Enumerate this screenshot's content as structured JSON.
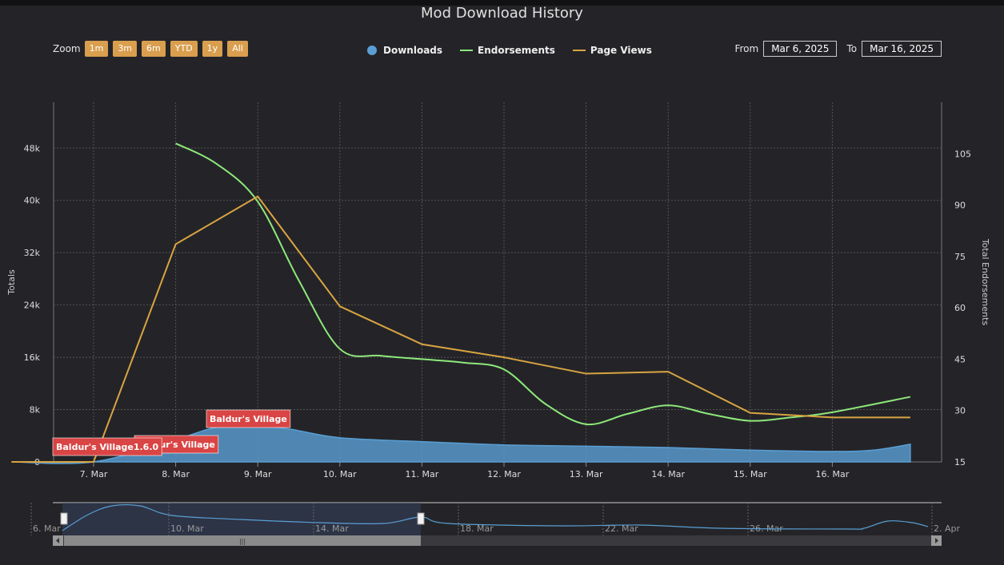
{
  "title": "Mod Download History",
  "zoom": {
    "label": "Zoom",
    "buttons": [
      "1m",
      "3m",
      "6m",
      "YTD",
      "1y",
      "All"
    ]
  },
  "legend": [
    {
      "name": "Downloads",
      "color": "#5a9fd4"
    },
    {
      "name": "Endorsements",
      "color": "#8ee87a"
    },
    {
      "name": "Page Views",
      "color": "#d9a441"
    }
  ],
  "range": {
    "from_label": "From",
    "from": "Mar 6, 2025",
    "to_label": "To",
    "to": "Mar 16, 2025"
  },
  "navigator": {
    "ticks": [
      "6. Mar",
      "10. Mar",
      "14. Mar",
      "18. Mar",
      "22. Mar",
      "26. Mar",
      "2. Apr"
    ]
  },
  "chart_data": {
    "type": "line",
    "title": "Mod Download History",
    "x_dates": [
      "2025-03-06",
      "2025-03-07",
      "2025-03-08",
      "2025-03-09",
      "2025-03-10",
      "2025-03-11",
      "2025-03-12",
      "2025-03-13",
      "2025-03-14",
      "2025-03-15",
      "2025-03-16",
      "2025-03-17"
    ],
    "x_tick_labels": [
      "7. Mar",
      "8. Mar",
      "9. Mar",
      "10. Mar",
      "11. Mar",
      "12. Mar",
      "13. Mar",
      "14. Mar",
      "15. Mar",
      "16. Mar"
    ],
    "y_left": {
      "label": "Totals",
      "ticks": [
        "0",
        "8k",
        "16k",
        "24k",
        "32k",
        "40k",
        "48k"
      ],
      "range": [
        0,
        55000
      ]
    },
    "y_right": {
      "label": "Total Endorsements",
      "ticks": [
        "15",
        "30",
        "45",
        "60",
        "75",
        "90",
        "105"
      ],
      "range": [
        15,
        120
      ]
    },
    "series": [
      {
        "name": "Downloads",
        "type": "area",
        "axis": "left",
        "x": [
          "2025-03-06",
          "2025-03-07",
          "2025-03-08",
          "2025-03-08.5",
          "2025-03-09",
          "2025-03-09.4",
          "2025-03-10",
          "2025-03-11",
          "2025-03-12",
          "2025-03-13",
          "2025-03-14",
          "2025-03-15",
          "2025-03-16",
          "2025-03-16.5",
          "2025-03-16.95"
        ],
        "values": [
          0,
          0,
          3400,
          5300,
          5500,
          5000,
          3700,
          3100,
          2600,
          2400,
          2200,
          1800,
          1600,
          1800,
          2700
        ]
      },
      {
        "name": "Endorsements",
        "type": "line",
        "axis": "right",
        "x": [
          "2025-03-08",
          "2025-03-08.5",
          "2025-03-09",
          "2025-03-09.5",
          "2025-03-10",
          "2025-03-10.5",
          "2025-03-11",
          "2025-03-11.5",
          "2025-03-12",
          "2025-03-12.5",
          "2025-03-13",
          "2025-03-13.5",
          "2025-03-14",
          "2025-03-14.5",
          "2025-03-15",
          "2025-03-15.5",
          "2025-03-16",
          "2025-03-16.95"
        ],
        "values": [
          108,
          102,
          91,
          68,
          48,
          46,
          45,
          44,
          42,
          32,
          26,
          29,
          31.5,
          29,
          27,
          28,
          29.5,
          34
        ]
      },
      {
        "name": "Page Views",
        "type": "line",
        "axis": "left",
        "x": [
          "2025-03-06",
          "2025-03-07",
          "2025-03-08",
          "2025-03-09",
          "2025-03-10",
          "2025-03-11",
          "2025-03-12",
          "2025-03-13",
          "2025-03-14",
          "2025-03-15",
          "2025-03-16",
          "2025-03-16.95"
        ],
        "values": [
          0,
          0,
          33300,
          40600,
          23800,
          18000,
          16000,
          13500,
          13800,
          7500,
          6800,
          6800
        ]
      }
    ],
    "flags": [
      {
        "text": "Baldur's Village1.6.0",
        "x": "2025-03-06"
      },
      {
        "text": "Baldur's Village",
        "x": "2025-03-07"
      },
      {
        "text": "Baldur's Village",
        "x": "2025-03-08"
      }
    ],
    "grid": true
  }
}
